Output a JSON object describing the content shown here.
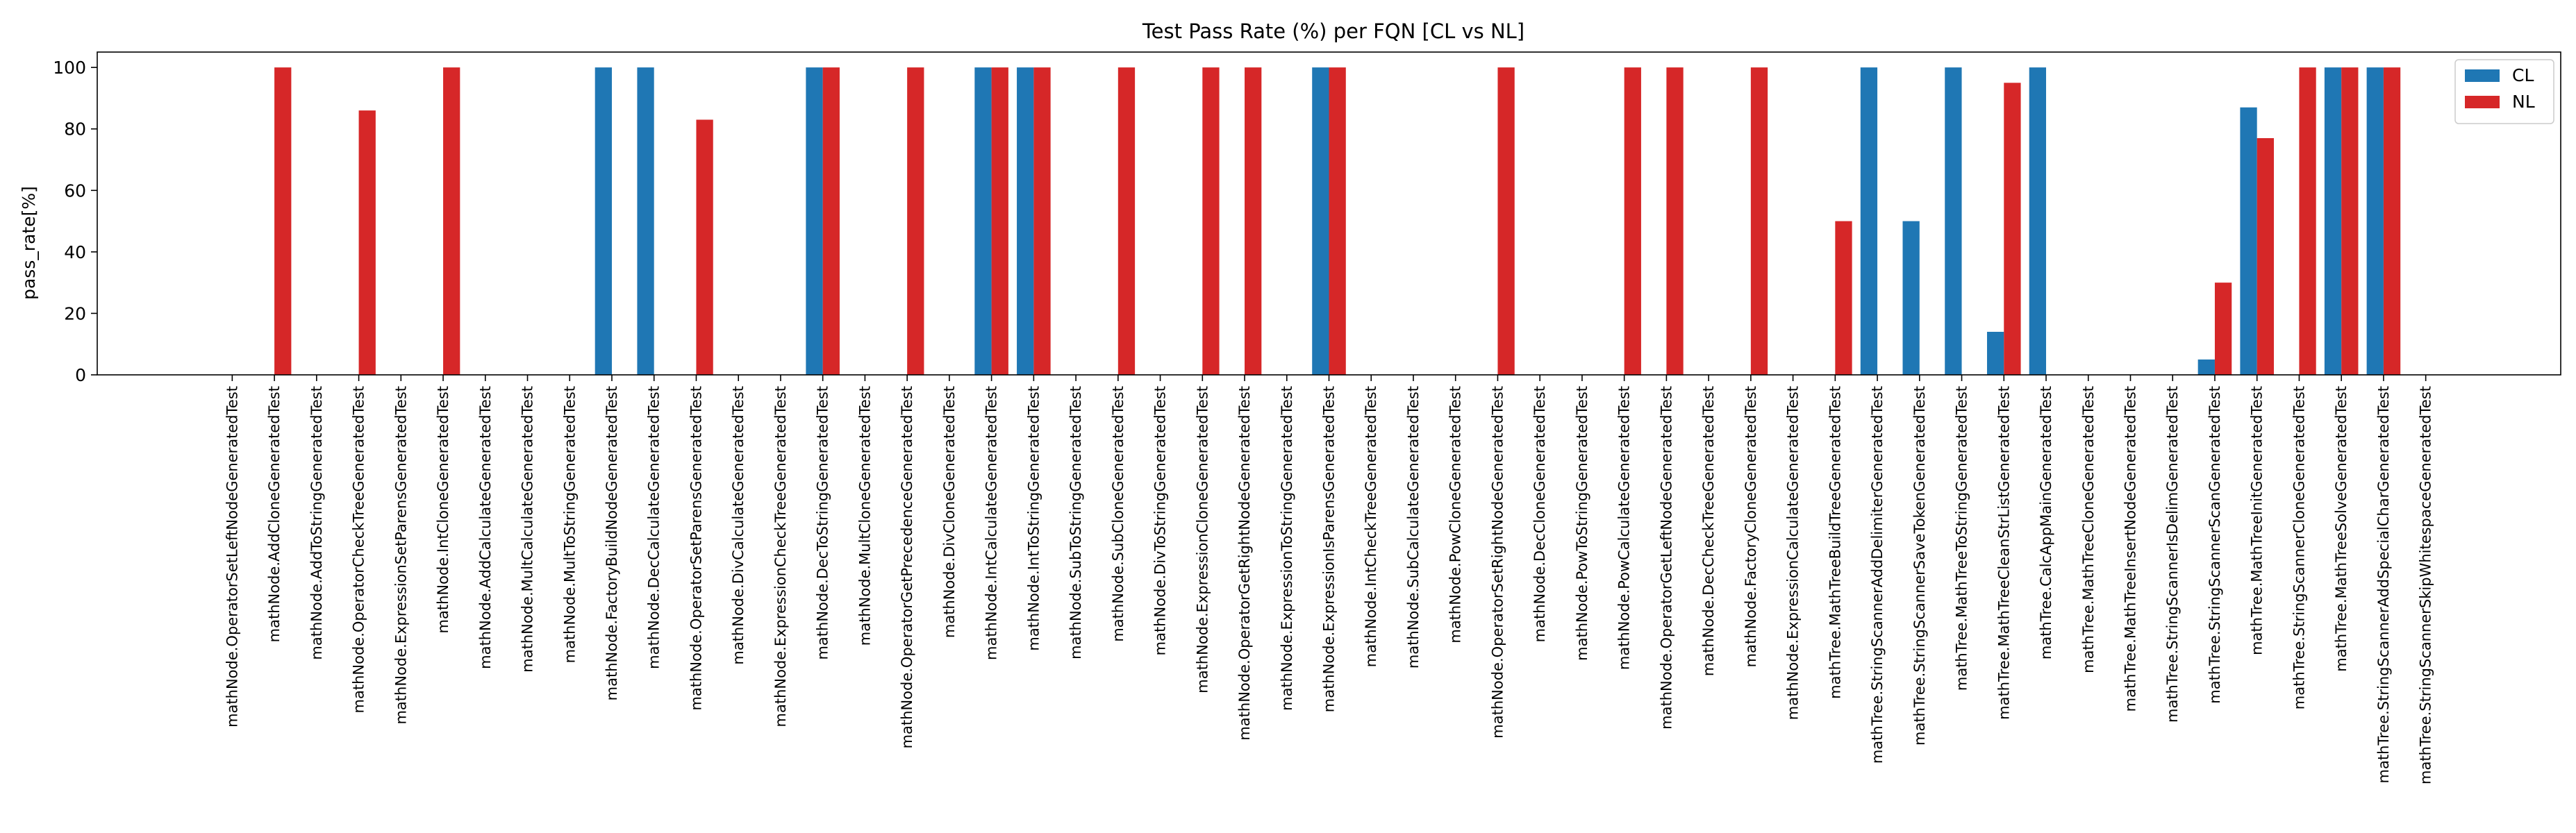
{
  "chart_data": {
    "type": "bar",
    "title": "Test Pass Rate (%) per FQN [CL vs NL]",
    "xlabel": "",
    "ylabel": "pass_rate[%]",
    "ylim": [
      0,
      105
    ],
    "yticks": [
      0,
      20,
      40,
      60,
      80,
      100
    ],
    "grid": false,
    "legend_position": "top-right",
    "colors": {
      "CL": "#1f77b4",
      "NL": "#d62728"
    },
    "categories": [
      "mathNode.OperatorSetLeftNodeGeneratedTest",
      "mathNode.AddCloneGeneratedTest",
      "mathNode.AddToStringGeneratedTest",
      "mathNode.OperatorCheckTreeGeneratedTest",
      "mathNode.ExpressionSetParensGeneratedTest",
      "mathNode.IntCloneGeneratedTest",
      "mathNode.AddCalculateGeneratedTest",
      "mathNode.MultCalculateGeneratedTest",
      "mathNode.MultToStringGeneratedTest",
      "mathNode.FactoryBuildNodeGeneratedTest",
      "mathNode.DecCalculateGeneratedTest",
      "mathNode.OperatorSetParensGeneratedTest",
      "mathNode.DivCalculateGeneratedTest",
      "mathNode.ExpressionCheckTreeGeneratedTest",
      "mathNode.DecToStringGeneratedTest",
      "mathNode.MultCloneGeneratedTest",
      "mathNode.OperatorGetPrecedenceGeneratedTest",
      "mathNode.DivCloneGeneratedTest",
      "mathNode.IntCalculateGeneratedTest",
      "mathNode.IntToStringGeneratedTest",
      "mathNode.SubToStringGeneratedTest",
      "mathNode.SubCloneGeneratedTest",
      "mathNode.DivToStringGeneratedTest",
      "mathNode.ExpressionCloneGeneratedTest",
      "mathNode.OperatorGetRightNodeGeneratedTest",
      "mathNode.ExpressionToStringGeneratedTest",
      "mathNode.ExpressionIsParensGeneratedTest",
      "mathNode.IntCheckTreeGeneratedTest",
      "mathNode.SubCalculateGeneratedTest",
      "mathNode.PowCloneGeneratedTest",
      "mathNode.OperatorSetRightNodeGeneratedTest",
      "mathNode.DecCloneGeneratedTest",
      "mathNode.PowToStringGeneratedTest",
      "mathNode.PowCalculateGeneratedTest",
      "mathNode.OperatorGetLeftNodeGeneratedTest",
      "mathNode.DecCheckTreeGeneratedTest",
      "mathNode.FactoryCloneGeneratedTest",
      "mathNode.ExpressionCalculateGeneratedTest",
      "mathTree.MathTreeBuildTreeGeneratedTest",
      "mathTree.StringScannerAddDelimiterGeneratedTest",
      "mathTree.StringScannerSaveTokenGeneratedTest",
      "mathTree.MathTreeToStringGeneratedTest",
      "mathTree.MathTreeCleanStrListGeneratedTest",
      "mathTree.CalcAppMainGeneratedTest",
      "mathTree.MathTreeCloneGeneratedTest",
      "mathTree.MathTreeInsertNodeGeneratedTest",
      "mathTree.StringScannerIsDelimGeneratedTest",
      "mathTree.StringScannerScanGeneratedTest",
      "mathTree.MathTreeInitGeneratedTest",
      "mathTree.StringScannerCloneGeneratedTest",
      "mathTree.MathTreeSolveGeneratedTest",
      "mathTree.StringScannerAddSpecialCharGeneratedTest",
      "mathTree.StringScannerSkipWhitespaceGeneratedTest"
    ],
    "series": [
      {
        "name": "CL",
        "values": [
          0,
          0,
          0,
          0,
          0,
          0,
          0,
          0,
          0,
          100,
          100,
          0,
          0,
          0,
          100,
          0,
          0,
          0,
          100,
          100,
          0,
          0,
          0,
          0,
          0,
          0,
          100,
          0,
          0,
          0,
          0,
          0,
          0,
          0,
          0,
          0,
          0,
          0,
          0,
          100,
          50,
          100,
          14,
          100,
          0,
          0,
          0,
          5,
          87,
          0,
          100,
          100,
          0
        ]
      },
      {
        "name": "NL",
        "values": [
          0,
          100,
          0,
          86,
          0,
          100,
          0,
          0,
          0,
          0,
          0,
          83,
          0,
          0,
          100,
          0,
          100,
          0,
          100,
          100,
          0,
          100,
          0,
          100,
          100,
          0,
          100,
          0,
          0,
          0,
          100,
          0,
          0,
          100,
          100,
          0,
          100,
          0,
          50,
          0,
          0,
          0,
          95,
          0,
          0,
          0,
          0,
          30,
          77,
          100,
          100,
          100,
          0
        ]
      }
    ]
  }
}
